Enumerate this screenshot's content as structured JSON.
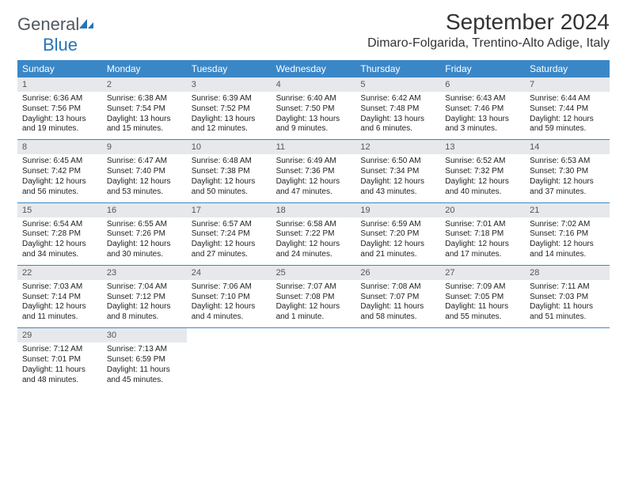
{
  "brand": {
    "name1": "General",
    "name2": "Blue"
  },
  "title": "September 2024",
  "subtitle": "Dimaro-Folgarida, Trentino-Alto Adige, Italy",
  "colors": {
    "header_bg": "#3a87c8",
    "header_text": "#ffffff",
    "daynum_bg": "#e6e8eb",
    "daynum_text": "#555555",
    "body_text": "#222222",
    "divider": "#3a87c8",
    "page_bg": "#ffffff",
    "brand_gray": "#505860",
    "brand_blue": "#2575b7"
  },
  "dow_labels": [
    "Sunday",
    "Monday",
    "Tuesday",
    "Wednesday",
    "Thursday",
    "Friday",
    "Saturday"
  ],
  "weeks": [
    [
      {
        "n": "1",
        "sunrise": "6:36 AM",
        "sunset": "7:56 PM",
        "dlh": "13",
        "dlm": "19"
      },
      {
        "n": "2",
        "sunrise": "6:38 AM",
        "sunset": "7:54 PM",
        "dlh": "13",
        "dlm": "15"
      },
      {
        "n": "3",
        "sunrise": "6:39 AM",
        "sunset": "7:52 PM",
        "dlh": "13",
        "dlm": "12"
      },
      {
        "n": "4",
        "sunrise": "6:40 AM",
        "sunset": "7:50 PM",
        "dlh": "13",
        "dlm": "9"
      },
      {
        "n": "5",
        "sunrise": "6:42 AM",
        "sunset": "7:48 PM",
        "dlh": "13",
        "dlm": "6"
      },
      {
        "n": "6",
        "sunrise": "6:43 AM",
        "sunset": "7:46 PM",
        "dlh": "13",
        "dlm": "3"
      },
      {
        "n": "7",
        "sunrise": "6:44 AM",
        "sunset": "7:44 PM",
        "dlh": "12",
        "dlm": "59"
      }
    ],
    [
      {
        "n": "8",
        "sunrise": "6:45 AM",
        "sunset": "7:42 PM",
        "dlh": "12",
        "dlm": "56"
      },
      {
        "n": "9",
        "sunrise": "6:47 AM",
        "sunset": "7:40 PM",
        "dlh": "12",
        "dlm": "53"
      },
      {
        "n": "10",
        "sunrise": "6:48 AM",
        "sunset": "7:38 PM",
        "dlh": "12",
        "dlm": "50"
      },
      {
        "n": "11",
        "sunrise": "6:49 AM",
        "sunset": "7:36 PM",
        "dlh": "12",
        "dlm": "47"
      },
      {
        "n": "12",
        "sunrise": "6:50 AM",
        "sunset": "7:34 PM",
        "dlh": "12",
        "dlm": "43"
      },
      {
        "n": "13",
        "sunrise": "6:52 AM",
        "sunset": "7:32 PM",
        "dlh": "12",
        "dlm": "40"
      },
      {
        "n": "14",
        "sunrise": "6:53 AM",
        "sunset": "7:30 PM",
        "dlh": "12",
        "dlm": "37"
      }
    ],
    [
      {
        "n": "15",
        "sunrise": "6:54 AM",
        "sunset": "7:28 PM",
        "dlh": "12",
        "dlm": "34"
      },
      {
        "n": "16",
        "sunrise": "6:55 AM",
        "sunset": "7:26 PM",
        "dlh": "12",
        "dlm": "30"
      },
      {
        "n": "17",
        "sunrise": "6:57 AM",
        "sunset": "7:24 PM",
        "dlh": "12",
        "dlm": "27"
      },
      {
        "n": "18",
        "sunrise": "6:58 AM",
        "sunset": "7:22 PM",
        "dlh": "12",
        "dlm": "24"
      },
      {
        "n": "19",
        "sunrise": "6:59 AM",
        "sunset": "7:20 PM",
        "dlh": "12",
        "dlm": "21"
      },
      {
        "n": "20",
        "sunrise": "7:01 AM",
        "sunset": "7:18 PM",
        "dlh": "12",
        "dlm": "17"
      },
      {
        "n": "21",
        "sunrise": "7:02 AM",
        "sunset": "7:16 PM",
        "dlh": "12",
        "dlm": "14"
      }
    ],
    [
      {
        "n": "22",
        "sunrise": "7:03 AM",
        "sunset": "7:14 PM",
        "dlh": "12",
        "dlm": "11"
      },
      {
        "n": "23",
        "sunrise": "7:04 AM",
        "sunset": "7:12 PM",
        "dlh": "12",
        "dlm": "8"
      },
      {
        "n": "24",
        "sunrise": "7:06 AM",
        "sunset": "7:10 PM",
        "dlh": "12",
        "dlm": "4"
      },
      {
        "n": "25",
        "sunrise": "7:07 AM",
        "sunset": "7:08 PM",
        "dlh": "12",
        "dlm": "1",
        "single_minute": true
      },
      {
        "n": "26",
        "sunrise": "7:08 AM",
        "sunset": "7:07 PM",
        "dlh": "11",
        "dlm": "58"
      },
      {
        "n": "27",
        "sunrise": "7:09 AM",
        "sunset": "7:05 PM",
        "dlh": "11",
        "dlm": "55"
      },
      {
        "n": "28",
        "sunrise": "7:11 AM",
        "sunset": "7:03 PM",
        "dlh": "11",
        "dlm": "51"
      }
    ],
    [
      {
        "n": "29",
        "sunrise": "7:12 AM",
        "sunset": "7:01 PM",
        "dlh": "11",
        "dlm": "48"
      },
      {
        "n": "30",
        "sunrise": "7:13 AM",
        "sunset": "6:59 PM",
        "dlh": "11",
        "dlm": "45"
      },
      {
        "empty": true
      },
      {
        "empty": true
      },
      {
        "empty": true
      },
      {
        "empty": true
      },
      {
        "empty": true
      }
    ]
  ],
  "labels": {
    "sunrise_prefix": "Sunrise: ",
    "sunset_prefix": "Sunset: ",
    "daylight_prefix": "Daylight: ",
    "hours_word": " hours",
    "and_word": "and ",
    "minutes_word": " minutes.",
    "minute_word": " minute."
  }
}
